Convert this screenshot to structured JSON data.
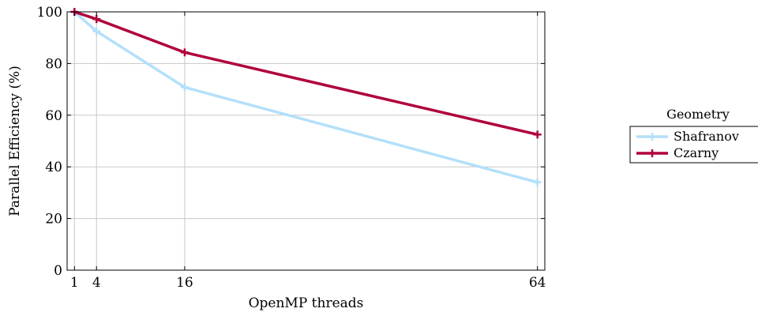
{
  "chart_data": {
    "type": "line",
    "xlabel": "OpenMP threads",
    "ylabel": "Parallel Efficiency (%)",
    "x": [
      1,
      4,
      16,
      64
    ],
    "xticks": [
      1,
      4,
      16,
      64
    ],
    "yticks": [
      0,
      20,
      40,
      60,
      80,
      100
    ],
    "xlim": [
      0,
      65
    ],
    "ylim": [
      0,
      100
    ],
    "grid": true,
    "legend": {
      "title": "Geometry",
      "placement": "outside-right"
    },
    "series": [
      {
        "name": "Shafranov",
        "color": "#b3e0fa",
        "values": [
          100,
          92.5,
          70.8,
          34
        ]
      },
      {
        "name": "Czarny",
        "color": "#b0003a",
        "values": [
          100,
          97.2,
          84.3,
          52.5
        ]
      }
    ]
  }
}
